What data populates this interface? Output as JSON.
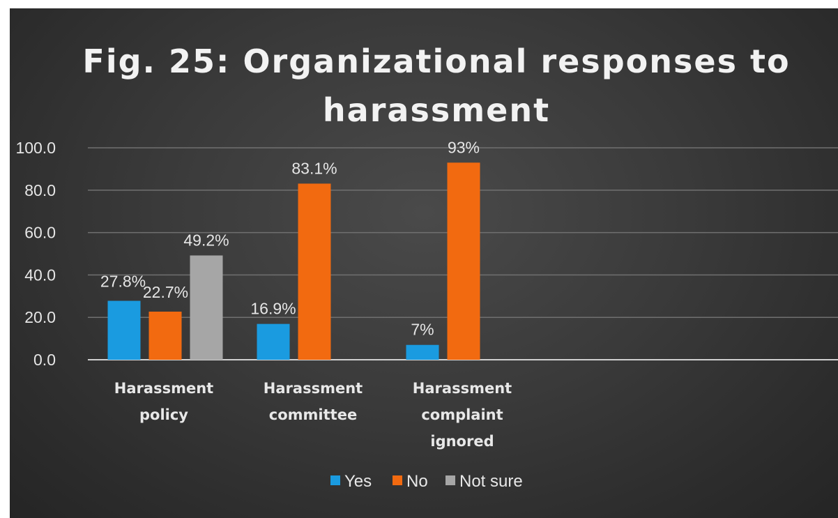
{
  "chart_data": {
    "type": "bar",
    "title_lines": [
      "Fig. 25: Organizational responses to",
      "harassment"
    ],
    "categories": [
      [
        "Harassment",
        "policy"
      ],
      [
        "Harassment",
        "committee"
      ],
      [
        "Harassment",
        "complaint",
        "ignored"
      ]
    ],
    "series": [
      {
        "name": "Yes",
        "color": "#1a9be0",
        "values": [
          27.8,
          16.9,
          7
        ],
        "labels": [
          "27.8%",
          "16.9%",
          "7%"
        ]
      },
      {
        "name": "No",
        "color": "#f26a10",
        "values": [
          22.7,
          83.1,
          93
        ],
        "labels": [
          "22.7%",
          "83.1%",
          "93%"
        ]
      },
      {
        "name": "Not sure",
        "color": "#a6a6a6",
        "values": [
          49.2,
          null,
          null
        ],
        "labels": [
          "49.2%",
          "",
          ""
        ]
      }
    ],
    "ylim": [
      0,
      100
    ],
    "yticks": [
      "0.0",
      "20.0",
      "40.0",
      "60.0",
      "80.0",
      "100.0"
    ],
    "ytick_values": [
      0,
      20,
      40,
      60,
      80,
      100
    ],
    "grid": true,
    "legend_position": "bottom"
  }
}
